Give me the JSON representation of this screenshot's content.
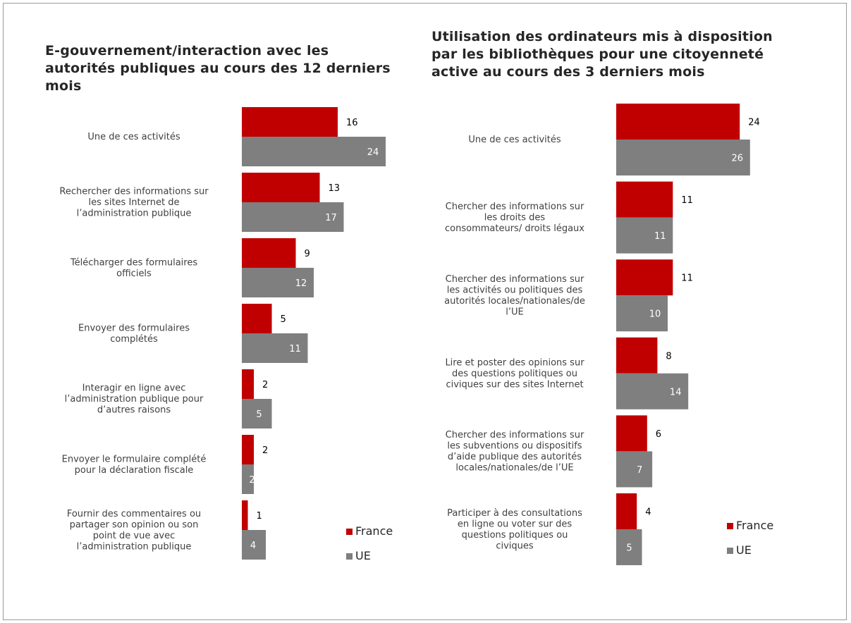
{
  "colors": {
    "france": "#c00000",
    "ue": "#7f7f7f"
  },
  "chart_data": [
    {
      "type": "bar",
      "orientation": "horizontal",
      "title": "E-gouvernement/interaction avec les autorités publiques au cours des 12 derniers mois",
      "categories": [
        [
          "Une de ces activités"
        ],
        [
          "Rechercher des informations sur",
          "les sites Internet de",
          "l’administration publique"
        ],
        [
          "Télécharger des formulaires",
          "officiels"
        ],
        [
          "Envoyer des formulaires",
          "complétés"
        ],
        [
          "Interagir en ligne avec",
          "l’administration publique pour",
          "d’autres raisons"
        ],
        [
          "Envoyer le formulaire complété",
          "pour la déclaration fiscale"
        ],
        [
          "Fournir des commentaires ou",
          "partager son opinion ou son",
          "point de vue avec",
          "l’administration publique"
        ]
      ],
      "series": [
        {
          "name": "France",
          "values": [
            16,
            13,
            9,
            5,
            2,
            2,
            1
          ]
        },
        {
          "name": "UE",
          "values": [
            24,
            17,
            12,
            11,
            5,
            2,
            4
          ]
        }
      ],
      "legend": [
        "France",
        "UE"
      ],
      "legend_position": "bottom-right"
    },
    {
      "type": "bar",
      "orientation": "horizontal",
      "title": "Utilisation des ordinateurs mis à disposition par les bibliothèques pour une citoyenneté active au cours des 3 derniers mois",
      "categories": [
        [
          "Une de ces activités"
        ],
        [
          "Chercher des informations sur",
          "les droits des",
          "consommateurs/ droits légaux"
        ],
        [
          "Chercher des informations sur",
          "les activités ou politiques des",
          "autorités locales/nationales/de",
          "l’UE"
        ],
        [
          "Lire et poster des opinions sur",
          "des questions politiques ou",
          "civiques sur des sites Internet"
        ],
        [
          "Chercher des informations sur",
          "les subventions ou dispositifs",
          "d’aide publique des autorités",
          "locales/nationales/de l’UE"
        ],
        [
          "Participer à des consultations",
          "en ligne ou voter sur des",
          "questions politiques ou",
          "civiques"
        ]
      ],
      "series": [
        {
          "name": "France",
          "values": [
            24,
            11,
            11,
            8,
            6,
            4
          ]
        },
        {
          "name": "UE",
          "values": [
            26,
            11,
            10,
            14,
            7,
            5
          ]
        }
      ],
      "legend": [
        "France",
        "UE"
      ],
      "legend_position": "bottom-right"
    }
  ]
}
